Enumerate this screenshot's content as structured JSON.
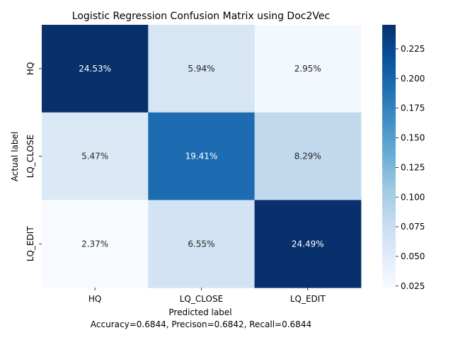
{
  "chart_data": {
    "type": "heatmap",
    "title": "Logistic Regression Confusion Matrix using Doc2Vec",
    "xlabel": "Predicted label",
    "ylabel": "Actual label",
    "footer": "Accuracy=0.6844, Precison=0.6842, Recall=0.6844",
    "x_categories": [
      "HQ",
      "LQ_CLOSE",
      "LQ_EDIT"
    ],
    "y_categories": [
      "HQ",
      "LQ_CLOSE",
      "LQ_EDIT"
    ],
    "values": [
      [
        0.2453,
        0.0594,
        0.0295
      ],
      [
        0.0547,
        0.1941,
        0.0829
      ],
      [
        0.0237,
        0.0655,
        0.2449
      ]
    ],
    "cell_labels": [
      [
        "24.53%",
        "5.94%",
        "2.95%"
      ],
      [
        "5.47%",
        "19.41%",
        "8.29%"
      ],
      [
        "2.37%",
        "6.55%",
        "24.49%"
      ]
    ],
    "colormap": "Blues",
    "colorbar": {
      "range": [
        0.0237,
        0.2453
      ],
      "ticks": [
        "0.025",
        "0.050",
        "0.075",
        "0.100",
        "0.125",
        "0.150",
        "0.175",
        "0.200",
        "0.225"
      ]
    },
    "grid": false
  }
}
